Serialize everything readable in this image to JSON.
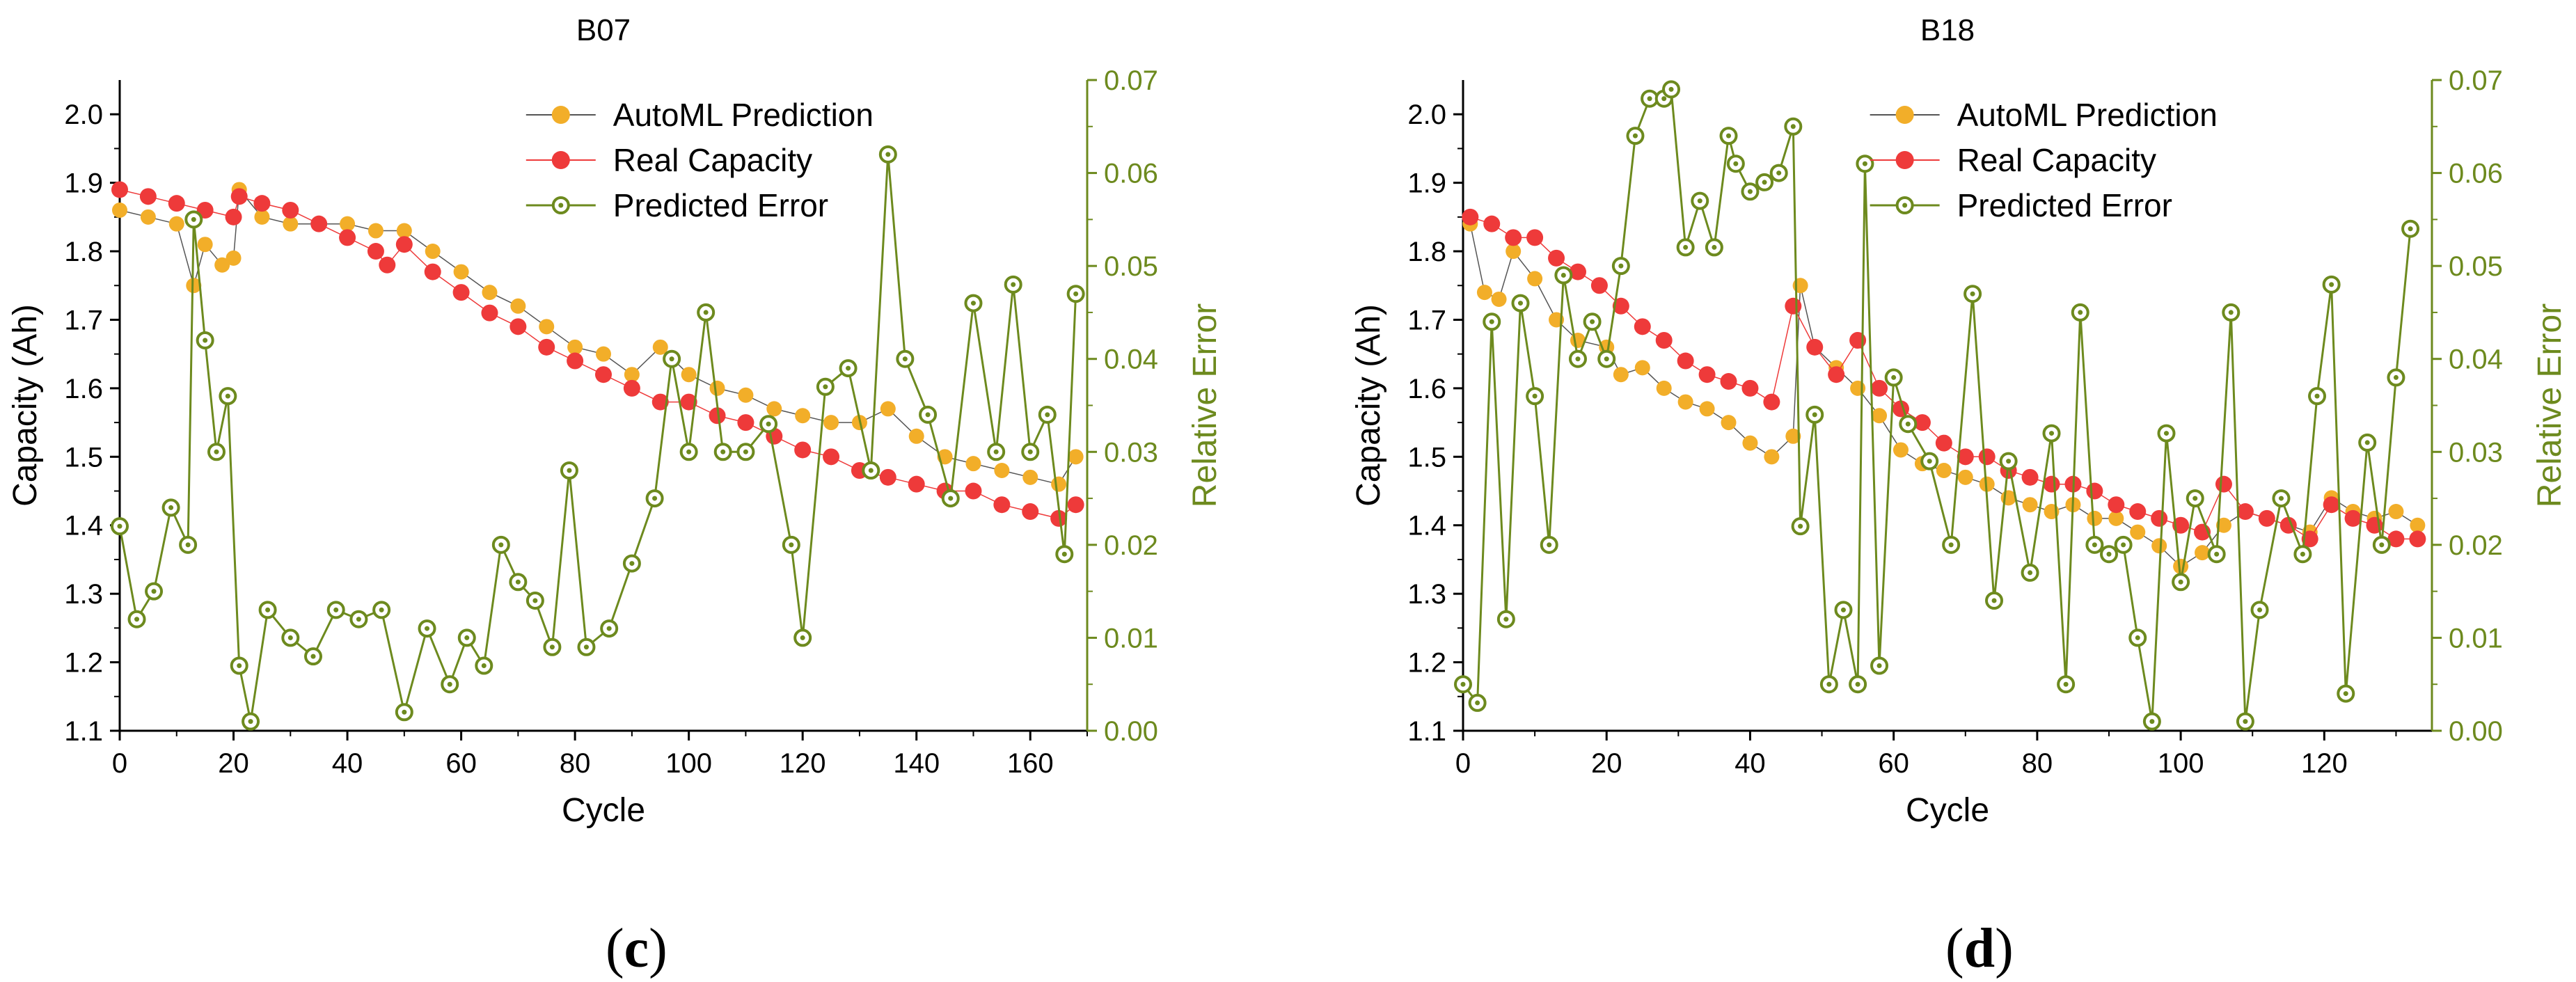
{
  "colors": {
    "prediction": "#f2ae29",
    "real": "#ee3a3a",
    "error": "#6d8a1e",
    "error_axis": "#6d8a1e",
    "axis": "#000000",
    "connector": "#555555"
  },
  "panel_labels": [
    "c",
    "d"
  ],
  "chart_data": [
    {
      "type": "scatter",
      "title": "B07",
      "xlabel": "Cycle",
      "ylabel": "Capacity (Ah)",
      "y2label": "Relative Error",
      "xlim": [
        0,
        170
      ],
      "ylim": [
        1.1,
        2.05
      ],
      "y2lim": [
        0,
        0.07
      ],
      "xticks": [
        "0",
        "20",
        "40",
        "60",
        "80",
        "100",
        "120",
        "140",
        "160"
      ],
      "yticks": [
        "1.1",
        "1.2",
        "1.3",
        "1.4",
        "1.5",
        "1.6",
        "1.7",
        "1.8",
        "1.9",
        "2.0"
      ],
      "y2ticks": [
        "0.00",
        "0.01",
        "0.02",
        "0.03",
        "0.04",
        "0.05",
        "0.06",
        "0.07"
      ],
      "legend_position": "top-center",
      "grid": false,
      "series": [
        {
          "name": "AutoML Prediction",
          "axis": "left",
          "marker": "filled-circle",
          "line": "thin-gray",
          "x": [
            0,
            5,
            10,
            13,
            15,
            18,
            20,
            21,
            25,
            30,
            35,
            40,
            45,
            50,
            55,
            60,
            65,
            70,
            75,
            80,
            85,
            90,
            95,
            100,
            105,
            110,
            115,
            120,
            125,
            130,
            135,
            140,
            145,
            150,
            155,
            160,
            165,
            168
          ],
          "y": [
            1.86,
            1.85,
            1.84,
            1.75,
            1.81,
            1.78,
            1.79,
            1.89,
            1.85,
            1.84,
            1.84,
            1.84,
            1.83,
            1.83,
            1.8,
            1.77,
            1.74,
            1.72,
            1.69,
            1.66,
            1.65,
            1.62,
            1.66,
            1.62,
            1.6,
            1.59,
            1.57,
            1.56,
            1.55,
            1.55,
            1.57,
            1.53,
            1.5,
            1.49,
            1.48,
            1.47,
            1.46,
            1.5
          ]
        },
        {
          "name": "Real Capacity",
          "axis": "left",
          "marker": "filled-circle",
          "line": "thin-red",
          "x": [
            0,
            5,
            10,
            15,
            20,
            21,
            25,
            30,
            35,
            40,
            45,
            47,
            50,
            55,
            60,
            65,
            70,
            75,
            80,
            85,
            90,
            95,
            100,
            105,
            110,
            115,
            120,
            125,
            130,
            135,
            140,
            145,
            150,
            155,
            160,
            165,
            168
          ],
          "y": [
            1.89,
            1.88,
            1.87,
            1.86,
            1.85,
            1.88,
            1.87,
            1.86,
            1.84,
            1.82,
            1.8,
            1.78,
            1.81,
            1.77,
            1.74,
            1.71,
            1.69,
            1.66,
            1.64,
            1.62,
            1.6,
            1.58,
            1.58,
            1.56,
            1.55,
            1.53,
            1.51,
            1.5,
            1.48,
            1.47,
            1.46,
            1.45,
            1.45,
            1.43,
            1.42,
            1.41,
            1.43
          ]
        },
        {
          "name": "Predicted Error",
          "axis": "right",
          "marker": "open-circle-dot",
          "line": "olive",
          "x": [
            0,
            3,
            6,
            9,
            12,
            13,
            15,
            17,
            19,
            21,
            23,
            26,
            30,
            34,
            38,
            42,
            46,
            50,
            54,
            58,
            61,
            64,
            67,
            70,
            73,
            76,
            79,
            82,
            86,
            90,
            94,
            97,
            100,
            103,
            106,
            110,
            114,
            118,
            120,
            124,
            128,
            132,
            135,
            138,
            142,
            146,
            150,
            154,
            157,
            160,
            163,
            166,
            168
          ],
          "y": [
            0.022,
            0.012,
            0.015,
            0.024,
            0.02,
            0.055,
            0.042,
            0.03,
            0.036,
            0.007,
            0.001,
            0.013,
            0.01,
            0.008,
            0.013,
            0.012,
            0.013,
            0.002,
            0.011,
            0.005,
            0.01,
            0.007,
            0.02,
            0.016,
            0.014,
            0.009,
            0.028,
            0.009,
            0.011,
            0.018,
            0.025,
            0.04,
            0.03,
            0.045,
            0.03,
            0.03,
            0.033,
            0.02,
            0.01,
            0.037,
            0.039,
            0.028,
            0.062,
            0.04,
            0.034,
            0.025,
            0.046,
            0.03,
            0.048,
            0.03,
            0.034,
            0.019,
            0.047
          ]
        }
      ]
    },
    {
      "type": "scatter",
      "title": "B18",
      "xlabel": "Cycle",
      "ylabel": "Capacity (Ah)",
      "y2label": "Relative Error",
      "xlim": [
        0,
        135
      ],
      "ylim": [
        1.1,
        2.05
      ],
      "y2lim": [
        0,
        0.07
      ],
      "xticks": [
        "0",
        "20",
        "40",
        "60",
        "80",
        "100",
        "120"
      ],
      "yticks": [
        "1.1",
        "1.2",
        "1.3",
        "1.4",
        "1.5",
        "1.6",
        "1.7",
        "1.8",
        "1.9",
        "2.0"
      ],
      "y2ticks": [
        "0.00",
        "0.01",
        "0.02",
        "0.03",
        "0.04",
        "0.05",
        "0.06",
        "0.07"
      ],
      "legend_position": "top-center",
      "grid": false,
      "series": [
        {
          "name": "AutoML Prediction",
          "axis": "left",
          "marker": "filled-circle",
          "line": "thin-gray",
          "x": [
            1,
            3,
            5,
            7,
            10,
            13,
            16,
            20,
            22,
            25,
            28,
            31,
            34,
            37,
            40,
            43,
            46,
            47,
            49,
            52,
            55,
            58,
            61,
            64,
            67,
            70,
            73,
            76,
            79,
            82,
            85,
            88,
            91,
            94,
            97,
            100,
            103,
            106,
            109,
            112,
            115,
            118,
            121,
            124,
            127,
            130,
            133
          ],
          "y": [
            1.84,
            1.74,
            1.73,
            1.8,
            1.76,
            1.7,
            1.67,
            1.66,
            1.62,
            1.63,
            1.6,
            1.58,
            1.57,
            1.55,
            1.52,
            1.5,
            1.53,
            1.75,
            1.66,
            1.63,
            1.6,
            1.56,
            1.51,
            1.49,
            1.48,
            1.47,
            1.46,
            1.44,
            1.43,
            1.42,
            1.43,
            1.41,
            1.41,
            1.39,
            1.37,
            1.34,
            1.36,
            1.4,
            1.42,
            1.41,
            1.4,
            1.39,
            1.44,
            1.42,
            1.41,
            1.42,
            1.4
          ]
        },
        {
          "name": "Real Capacity",
          "axis": "left",
          "marker": "filled-circle",
          "line": "thin-red",
          "x": [
            1,
            4,
            7,
            10,
            13,
            16,
            19,
            22,
            25,
            28,
            31,
            34,
            37,
            40,
            43,
            46,
            49,
            52,
            55,
            58,
            61,
            64,
            67,
            70,
            73,
            76,
            79,
            82,
            85,
            88,
            91,
            94,
            97,
            100,
            103,
            106,
            109,
            112,
            115,
            118,
            121,
            124,
            127,
            130,
            133
          ],
          "y": [
            1.85,
            1.84,
            1.82,
            1.82,
            1.79,
            1.77,
            1.75,
            1.72,
            1.69,
            1.67,
            1.64,
            1.62,
            1.61,
            1.6,
            1.58,
            1.72,
            1.66,
            1.62,
            1.67,
            1.6,
            1.57,
            1.55,
            1.52,
            1.5,
            1.5,
            1.48,
            1.47,
            1.46,
            1.46,
            1.45,
            1.43,
            1.42,
            1.41,
            1.4,
            1.39,
            1.46,
            1.42,
            1.41,
            1.4,
            1.38,
            1.43,
            1.41,
            1.4,
            1.38,
            1.38
          ]
        },
        {
          "name": "Predicted Error",
          "axis": "right",
          "marker": "open-circle-dot",
          "line": "olive",
          "x": [
            0,
            2,
            4,
            6,
            8,
            10,
            12,
            14,
            16,
            18,
            20,
            22,
            24,
            26,
            28,
            29,
            31,
            33,
            35,
            37,
            38,
            40,
            42,
            44,
            46,
            47,
            49,
            51,
            53,
            55,
            56,
            58,
            60,
            62,
            65,
            68,
            71,
            74,
            76,
            79,
            82,
            84,
            86,
            88,
            90,
            92,
            94,
            96,
            98,
            100,
            102,
            105,
            107,
            109,
            111,
            114,
            117,
            119,
            121,
            123,
            126,
            128,
            130,
            132
          ],
          "y": [
            0.005,
            0.003,
            0.044,
            0.012,
            0.046,
            0.036,
            0.02,
            0.049,
            0.04,
            0.044,
            0.04,
            0.05,
            0.064,
            0.068,
            0.068,
            0.069,
            0.052,
            0.057,
            0.052,
            0.064,
            0.061,
            0.058,
            0.059,
            0.06,
            0.065,
            0.022,
            0.034,
            0.005,
            0.013,
            0.005,
            0.061,
            0.007,
            0.038,
            0.033,
            0.029,
            0.02,
            0.047,
            0.014,
            0.029,
            0.017,
            0.032,
            0.005,
            0.045,
            0.02,
            0.019,
            0.02,
            0.01,
            0.001,
            0.032,
            0.016,
            0.025,
            0.019,
            0.045,
            0.001,
            0.013,
            0.025,
            0.019,
            0.036,
            0.048,
            0.004,
            0.031,
            0.02,
            0.038,
            0.054
          ]
        }
      ]
    }
  ]
}
